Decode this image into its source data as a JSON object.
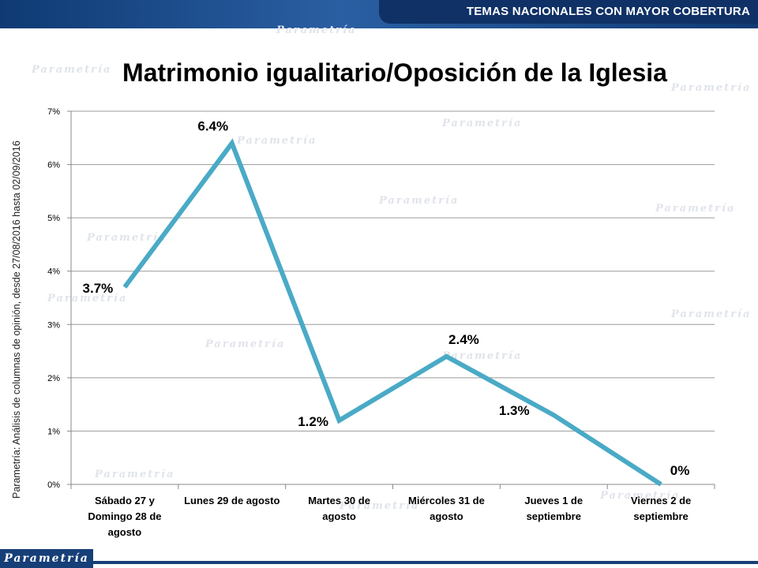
{
  "header": {
    "title": "TEMAS NACIONALES CON MAYOR COBERTURA"
  },
  "side_note": "Parametría: Análisis de columnas de opinión, desde 27/08/2016 hasta  02/09/2016",
  "footer": {
    "logo": "Parametría"
  },
  "watermark": "Parametría",
  "colors": {
    "line": "#4aaac6",
    "header_bg": "#1e4e8c",
    "grid": "#999999"
  },
  "chart_data": {
    "type": "line",
    "title": "Matrimonio igualitario/Oposición de la Iglesia",
    "categories": [
      [
        "Sábado 27 y",
        "Domingo 28 de",
        "agosto"
      ],
      [
        "Lunes 29 de agosto"
      ],
      [
        "Martes 30 de",
        "agosto"
      ],
      [
        "Miércoles 31 de",
        "agosto"
      ],
      [
        "Jueves 1 de",
        "septiembre"
      ],
      [
        "Viernes 2 de",
        "septiembre"
      ]
    ],
    "values": [
      3.7,
      6.4,
      1.2,
      2.4,
      1.3,
      0
    ],
    "data_labels": [
      "3.7%",
      "6.4%",
      "1.2%",
      "2.4%",
      "1.3%",
      "0%"
    ],
    "ylim": [
      0,
      7
    ],
    "yticks": [
      "0%",
      "1%",
      "2%",
      "3%",
      "4%",
      "5%",
      "6%",
      "7%"
    ],
    "grid": true,
    "legend": "none"
  }
}
